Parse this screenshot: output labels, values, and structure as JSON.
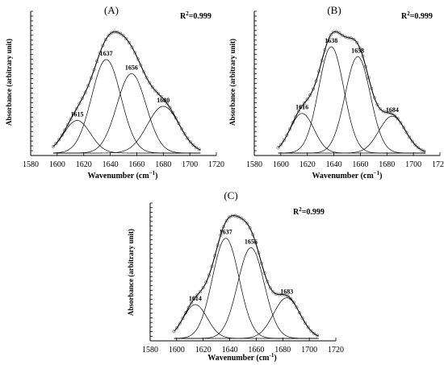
{
  "chart_data": [
    {
      "type": "line",
      "panel_label": "(A)",
      "r2_label": "R",
      "r2_sup": "2",
      "r2_value": "=0.999",
      "xlabel": "Wavenumber (cm",
      "xlabel_sup": "−1",
      "xlabel_close": ")",
      "ylabel": "Absorbance (arbitrary unit)",
      "xlim": [
        1580,
        1720
      ],
      "xticks": [
        "1580",
        "1600",
        "1620",
        "1640",
        "1660",
        "1680",
        "1700",
        "1720"
      ],
      "ylim": [
        0,
        1
      ],
      "fit_range": [
        1597,
        1708
      ],
      "experimental_shown": true,
      "peaks": [
        {
          "label": "1615",
          "center": 1615,
          "height": 0.23,
          "width": 10
        },
        {
          "label": "1637",
          "center": 1637,
          "height": 0.66,
          "width": 11
        },
        {
          "label": "1656",
          "center": 1656,
          "height": 0.56,
          "width": 11
        },
        {
          "label": "1680",
          "center": 1680,
          "height": 0.33,
          "width": 12
        }
      ]
    },
    {
      "type": "line",
      "panel_label": "(B)",
      "r2_label": "R",
      "r2_sup": "2",
      "r2_value": "=0.999",
      "xlabel": "Wavenumber (cm",
      "xlabel_sup": "−1",
      "xlabel_close": ")",
      "ylabel": "Absorbance (arbitrary unit)",
      "xlim": [
        1580,
        1720
      ],
      "xticks": [
        "1580",
        "1600",
        "1620",
        "1640",
        "1660",
        "1680",
        "1700",
        "1720"
      ],
      "ylim": [
        0,
        1
      ],
      "fit_range": [
        1598,
        1709
      ],
      "experimental_shown": true,
      "peaks": [
        {
          "label": "1616",
          "center": 1616,
          "height": 0.28,
          "width": 9
        },
        {
          "label": "1638",
          "center": 1638,
          "height": 0.75,
          "width": 9.5
        },
        {
          "label": "1658",
          "center": 1658,
          "height": 0.68,
          "width": 9.5
        },
        {
          "label": "1684",
          "center": 1684,
          "height": 0.26,
          "width": 10
        }
      ]
    },
    {
      "type": "line",
      "panel_label": "(C)",
      "r2_label": "R",
      "r2_sup": "2",
      "r2_value": "=0.999",
      "xlabel": "Wavenumber (cm",
      "xlabel_sup": "-1",
      "xlabel_close": ")",
      "ylabel": "Absorbance (arbitrary unit)",
      "xlim": [
        1580,
        1720
      ],
      "xticks": [
        "1580",
        "1600",
        "1620",
        "1640",
        "1660",
        "1680",
        "1700",
        "1720"
      ],
      "ylim": [
        0,
        1
      ],
      "fit_range": [
        1598,
        1707
      ],
      "experimental_shown": true,
      "peaks": [
        {
          "label": "1614",
          "center": 1614,
          "height": 0.25,
          "width": 9
        },
        {
          "label": "1637",
          "center": 1637,
          "height": 0.74,
          "width": 10
        },
        {
          "label": "1656",
          "center": 1656,
          "height": 0.67,
          "width": 10
        },
        {
          "label": "1683",
          "center": 1683,
          "height": 0.3,
          "width": 10
        }
      ]
    }
  ]
}
